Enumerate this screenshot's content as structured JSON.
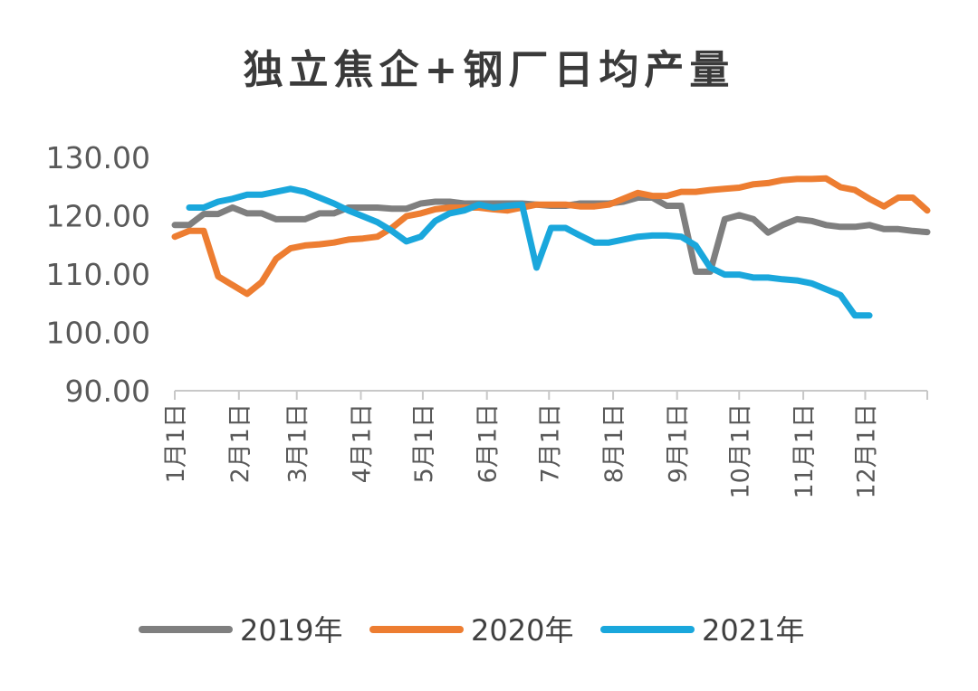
{
  "chart_data": {
    "type": "line",
    "title": "独立焦企+钢厂日均产量",
    "xlabel": "",
    "ylabel": "",
    "ylim": [
      90,
      130
    ],
    "ytick_values": [
      90,
      100,
      110,
      120,
      130
    ],
    "ytick_labels": [
      "90.00",
      "100.00",
      "110.00",
      "120.00",
      "130.00"
    ],
    "xlim": [
      0,
      52
    ],
    "xtick_values": [
      0,
      4.43,
      8.43,
      12.86,
      17.14,
      21.57,
      25.86,
      30.29,
      34.71,
      39,
      43.43,
      47.71
    ],
    "xtick_labels": [
      "1月1日",
      "2月1日",
      "3月1日",
      "4月1日",
      "5月1日",
      "6月1日",
      "7月1日",
      "8月1日",
      "9月1日",
      "10月1日",
      "11月1日",
      "12月1日"
    ],
    "legend_position": "bottom",
    "series": [
      {
        "name": "2019年",
        "color": "#7f7f7f",
        "x": [
          0,
          1,
          2,
          3,
          4,
          5,
          6,
          7,
          8,
          9,
          10,
          11,
          12,
          13,
          14,
          15,
          16,
          17,
          18,
          19,
          20,
          21,
          22,
          23,
          24,
          25,
          26,
          27,
          28,
          29,
          30,
          31,
          32,
          33,
          34,
          35,
          36,
          37,
          38,
          39,
          40,
          41,
          42,
          43,
          44,
          45,
          46,
          47,
          48,
          49,
          50,
          51,
          52
        ],
        "values": [
          118.4,
          118.4,
          120.3,
          120.3,
          121.4,
          120.4,
          120.4,
          119.4,
          119.4,
          119.4,
          120.4,
          120.4,
          121.4,
          121.4,
          121.4,
          121.2,
          121.2,
          122.1,
          122.4,
          122.4,
          122.1,
          122.1,
          122.1,
          122.1,
          122.1,
          121.9,
          121.7,
          121.7,
          122.1,
          122.1,
          122.1,
          122.4,
          123.1,
          123.1,
          121.7,
          121.7,
          110.4,
          110.4,
          119.4,
          120.1,
          119.4,
          117.1,
          118.4,
          119.4,
          119.1,
          118.4,
          118.1,
          118.1,
          118.4,
          117.7,
          117.7,
          117.4,
          117.2
        ]
      },
      {
        "name": "2020年",
        "color": "#ed7d31",
        "x": [
          0,
          1,
          2,
          3,
          4,
          5,
          6,
          7,
          8,
          9,
          10,
          11,
          12,
          13,
          14,
          15,
          16,
          17,
          18,
          19,
          20,
          21,
          22,
          23,
          24,
          25,
          26,
          27,
          28,
          29,
          30,
          31,
          32,
          33,
          34,
          35,
          36,
          37,
          38,
          39,
          40,
          41,
          42,
          43,
          44,
          45,
          46,
          47,
          48,
          49,
          50,
          51,
          52
        ],
        "values": [
          116.4,
          117.4,
          117.4,
          109.6,
          108.1,
          106.6,
          108.6,
          112.6,
          114.4,
          114.9,
          115.1,
          115.4,
          115.9,
          116.1,
          116.4,
          117.9,
          119.9,
          120.4,
          121.1,
          121.4,
          121.4,
          121.4,
          121.1,
          120.9,
          121.4,
          121.9,
          121.9,
          121.9,
          121.6,
          121.6,
          121.9,
          122.9,
          123.9,
          123.4,
          123.4,
          124.1,
          124.1,
          124.4,
          124.6,
          124.8,
          125.4,
          125.6,
          126.1,
          126.3,
          126.3,
          126.4,
          124.9,
          124.4,
          122.9,
          121.6,
          123.1,
          123.1,
          120.9
        ]
      },
      {
        "name": "2021年",
        "color": "#1aa7dc",
        "x": [
          1,
          2,
          3,
          4,
          5,
          6,
          7,
          8,
          9,
          10,
          11,
          12,
          13,
          14,
          15,
          16,
          17,
          18,
          19,
          20,
          21,
          22,
          23,
          24,
          25,
          26,
          27,
          28,
          29,
          30,
          31,
          32,
          33,
          34,
          35,
          36,
          37,
          38,
          39,
          40,
          41,
          42,
          43,
          44,
          45,
          46,
          47,
          48
        ],
        "values": [
          121.4,
          121.4,
          122.4,
          122.9,
          123.6,
          123.6,
          124.1,
          124.6,
          124.1,
          123.1,
          122.1,
          120.9,
          119.9,
          118.9,
          117.4,
          115.6,
          116.4,
          119.1,
          120.4,
          120.9,
          121.9,
          121.4,
          121.7,
          121.9,
          111.1,
          117.9,
          117.9,
          116.6,
          115.4,
          115.4,
          115.9,
          116.4,
          116.6,
          116.6,
          116.4,
          114.9,
          111.1,
          109.9,
          109.9,
          109.4,
          109.4,
          109.1,
          108.9,
          108.4,
          107.4,
          106.4,
          102.9,
          102.9
        ]
      }
    ]
  }
}
